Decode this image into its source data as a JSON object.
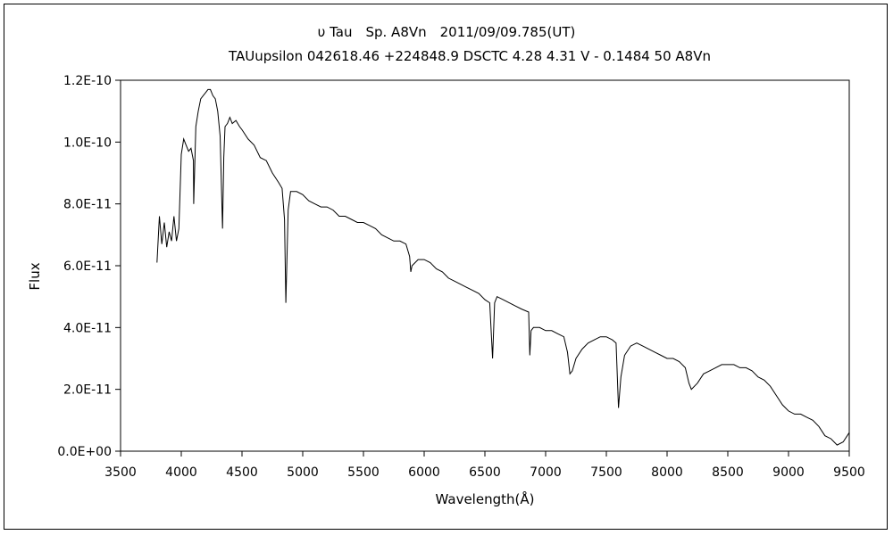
{
  "chart_data": {
    "type": "line",
    "title": "υ Tau　Sp. A8Vn　2011/09/09.785(UT)",
    "subtitle": "TAUupsilon 042618.46 +224848.9 DSCTC 4.28 4.31 V - 0.1484 50 A8Vn",
    "xlabel": "Wavelength(Å)",
    "ylabel": "Flux",
    "xlim": [
      3500,
      9500
    ],
    "ylim": [
      0,
      1.2e-10
    ],
    "x_ticks": [
      "3500",
      "4000",
      "4500",
      "5000",
      "5500",
      "6000",
      "6500",
      "7000",
      "7500",
      "8000",
      "8500",
      "9000",
      "9500"
    ],
    "y_ticks": [
      "0.0E+00",
      "2.0E-11",
      "4.0E-11",
      "6.0E-11",
      "8.0E-11",
      "1.0E-10",
      "1.2E-10"
    ],
    "grid": false,
    "legend": "none",
    "series": [
      {
        "color": "#000000",
        "x": [
          3800,
          3820,
          3840,
          3860,
          3880,
          3900,
          3920,
          3940,
          3960,
          3980,
          4000,
          4020,
          4040,
          4060,
          4080,
          4100,
          4102,
          4120,
          4140,
          4160,
          4180,
          4200,
          4220,
          4240,
          4260,
          4280,
          4300,
          4320,
          4340,
          4350,
          4360,
          4380,
          4400,
          4420,
          4450,
          4480,
          4500,
          4550,
          4600,
          4650,
          4700,
          4750,
          4800,
          4830,
          4850,
          4861,
          4880,
          4900,
          4950,
          5000,
          5050,
          5100,
          5150,
          5200,
          5250,
          5300,
          5350,
          5400,
          5450,
          5500,
          5550,
          5600,
          5650,
          5700,
          5750,
          5800,
          5850,
          5880,
          5890,
          5900,
          5950,
          6000,
          6050,
          6100,
          6150,
          6200,
          6250,
          6300,
          6350,
          6400,
          6450,
          6500,
          6540,
          6563,
          6580,
          6600,
          6650,
          6700,
          6750,
          6800,
          6860,
          6870,
          6880,
          6900,
          6950,
          7000,
          7050,
          7100,
          7150,
          7180,
          7200,
          7220,
          7250,
          7300,
          7350,
          7400,
          7450,
          7500,
          7550,
          7580,
          7600,
          7620,
          7650,
          7700,
          7750,
          7800,
          7850,
          7900,
          7950,
          8000,
          8050,
          8100,
          8150,
          8180,
          8200,
          8250,
          8300,
          8350,
          8400,
          8450,
          8500,
          8550,
          8600,
          8650,
          8700,
          8750,
          8800,
          8850,
          8900,
          8950,
          9000,
          9050,
          9100,
          9150,
          9200,
          9250,
          9300,
          9350,
          9400,
          9450,
          9500
        ],
        "y": [
          6.1e-11,
          7.6e-11,
          6.7e-11,
          7.4e-11,
          6.6e-11,
          7.1e-11,
          6.8e-11,
          7.6e-11,
          6.8e-11,
          7.2e-11,
          9.6e-11,
          1.01e-10,
          9.9e-11,
          9.7e-11,
          9.8e-11,
          9.4e-11,
          8e-11,
          1.05e-10,
          1.1e-10,
          1.14e-10,
          1.15e-10,
          1.16e-10,
          1.17e-10,
          1.17e-10,
          1.15e-10,
          1.14e-10,
          1.1e-10,
          1.02e-10,
          7.2e-11,
          9.5e-11,
          1.05e-10,
          1.06e-10,
          1.08e-10,
          1.06e-10,
          1.07e-10,
          1.05e-10,
          1.04e-10,
          1.01e-10,
          9.9e-11,
          9.5e-11,
          9.4e-11,
          9e-11,
          8.7e-11,
          8.5e-11,
          7.5e-11,
          4.8e-11,
          7.8e-11,
          8.4e-11,
          8.4e-11,
          8.3e-11,
          8.1e-11,
          8e-11,
          7.9e-11,
          7.9e-11,
          7.8e-11,
          7.6e-11,
          7.6e-11,
          7.5e-11,
          7.4e-11,
          7.4e-11,
          7.3e-11,
          7.2e-11,
          7e-11,
          6.9e-11,
          6.8e-11,
          6.8e-11,
          6.7e-11,
          6.3e-11,
          5.8e-11,
          6e-11,
          6.2e-11,
          6.2e-11,
          6.1e-11,
          5.9e-11,
          5.8e-11,
          5.6e-11,
          5.5e-11,
          5.4e-11,
          5.3e-11,
          5.2e-11,
          5.1e-11,
          4.9e-11,
          4.8e-11,
          3e-11,
          4.8e-11,
          5e-11,
          4.9e-11,
          4.8e-11,
          4.7e-11,
          4.6e-11,
          4.5e-11,
          3.1e-11,
          3.9e-11,
          4e-11,
          4e-11,
          3.9e-11,
          3.9e-11,
          3.8e-11,
          3.7e-11,
          3.2e-11,
          2.5e-11,
          2.6e-11,
          3e-11,
          3.3e-11,
          3.5e-11,
          3.6e-11,
          3.7e-11,
          3.7e-11,
          3.6e-11,
          3.5e-11,
          1.4e-11,
          2.4e-11,
          3.1e-11,
          3.4e-11,
          3.5e-11,
          3.4e-11,
          3.3e-11,
          3.2e-11,
          3.1e-11,
          3e-11,
          3e-11,
          2.9e-11,
          2.7e-11,
          2.2e-11,
          2e-11,
          2.2e-11,
          2.5e-11,
          2.6e-11,
          2.7e-11,
          2.8e-11,
          2.8e-11,
          2.8e-11,
          2.7e-11,
          2.7e-11,
          2.6e-11,
          2.4e-11,
          2.3e-11,
          2.1e-11,
          1.8e-11,
          1.5e-11,
          1.3e-11,
          1.2e-11,
          1.2e-11,
          1.1e-11,
          1e-11,
          8e-12,
          5e-12,
          4e-12,
          2e-12,
          3e-12,
          6e-12
        ]
      }
    ]
  }
}
